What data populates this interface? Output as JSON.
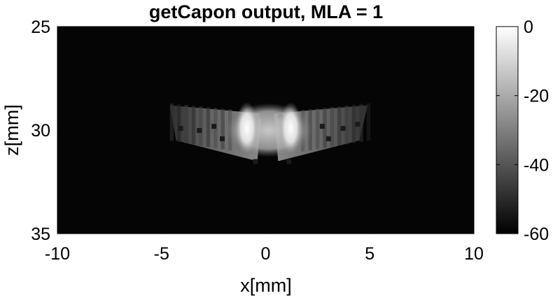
{
  "chart_data": {
    "type": "heatmap",
    "title": "getCapon output, MLA = 1",
    "xlabel": "x[mm]",
    "ylabel": "z[mm]",
    "xlim": [
      -10,
      10
    ],
    "ylim": [
      25,
      35
    ],
    "y_reversed": true,
    "x_ticks": [
      -10,
      -5,
      0,
      5,
      10
    ],
    "y_ticks": [
      25,
      30,
      35
    ],
    "x_tick_labels": [
      "-10",
      "-5",
      "0",
      "5",
      "10"
    ],
    "y_tick_labels": [
      "25",
      "30",
      "35"
    ],
    "colormap": "gray",
    "colorbar": {
      "range_db": [
        -60,
        0
      ],
      "ticks": [
        0,
        -20,
        -40,
        -60
      ],
      "tick_labels": [
        "0",
        "-20",
        "-40",
        "-60"
      ]
    },
    "image_summary": {
      "background_db": -60,
      "bright_features": [
        {
          "x_mm": -0.9,
          "z_mm": 29.9,
          "level_db": 0
        },
        {
          "x_mm": 1.2,
          "z_mm": 29.9,
          "level_db": -2
        }
      ],
      "wing_extent_x_mm": [
        -4.6,
        4.9
      ],
      "wing_extent_z_mm": [
        28.8,
        31.5
      ],
      "wing_level_db": -30
    },
    "colors": {
      "background": "#ffffff",
      "axis": "#000000",
      "plot_floor": "#050505"
    }
  }
}
